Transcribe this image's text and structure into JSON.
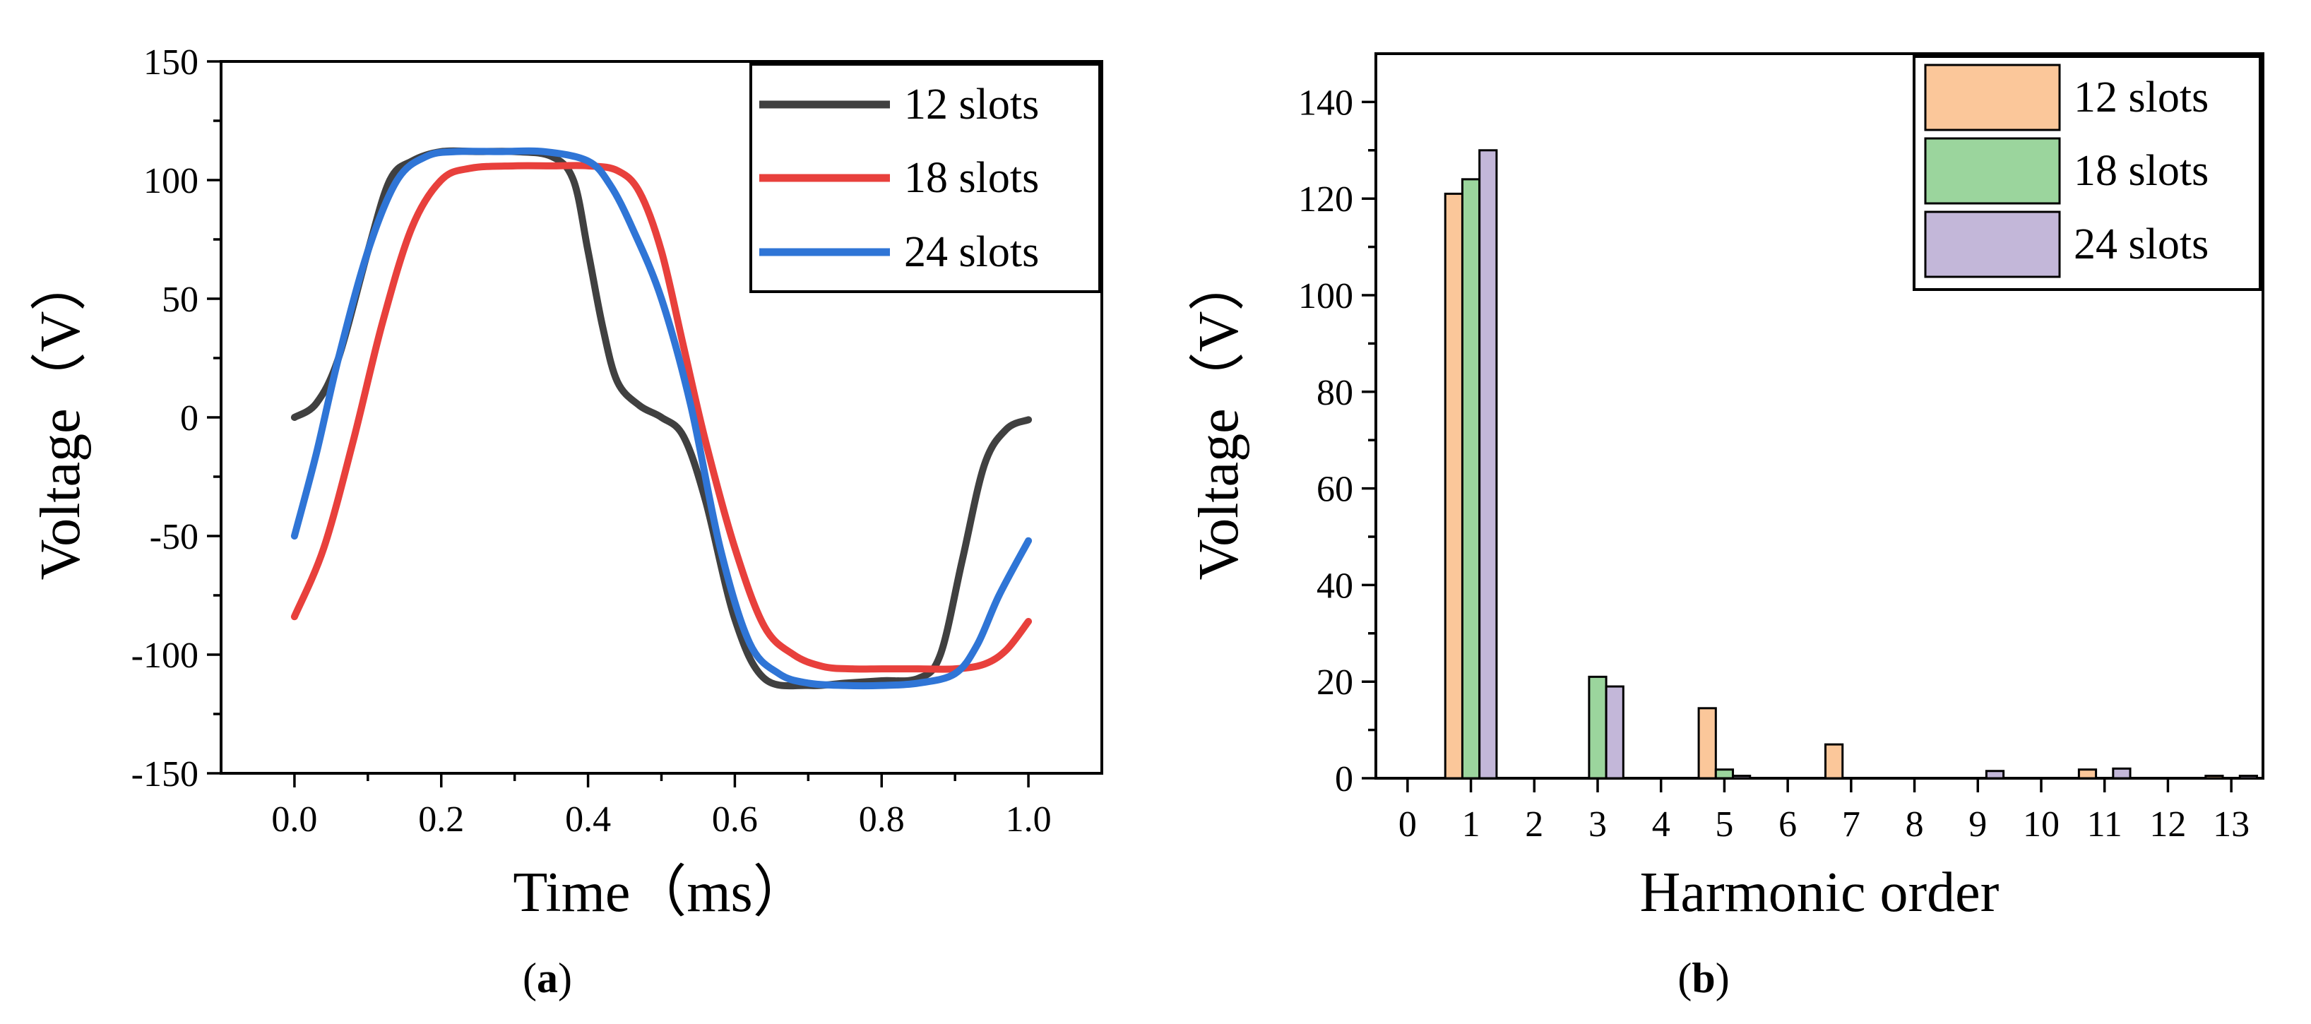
{
  "chart_data": [
    {
      "type": "line",
      "caption": "a",
      "xlabel": "Time（ms）",
      "ylabel": "Voltage（V）",
      "xlim": [
        -0.1,
        1.1
      ],
      "ylim": [
        -150,
        150
      ],
      "xticks": [
        "0.0",
        "0.2",
        "0.4",
        "0.6",
        "0.8",
        "1.0"
      ],
      "yticks": [
        "150",
        "100",
        "50",
        "0",
        "-50",
        "-100",
        "-150"
      ],
      "legend_position": "top-right",
      "series": [
        {
          "name": "12 slots",
          "color": "#404040",
          "x": [
            0.0,
            0.03,
            0.06,
            0.1,
            0.13,
            0.16,
            0.2,
            0.25,
            0.3,
            0.35,
            0.38,
            0.4,
            0.42,
            0.44,
            0.47,
            0.5,
            0.53,
            0.56,
            0.6,
            0.64,
            0.7,
            0.75,
            0.8,
            0.85,
            0.88,
            0.91,
            0.94,
            0.97,
            1.0
          ],
          "values": [
            0,
            6,
            25,
            70,
            100,
            108,
            112,
            112,
            112,
            110,
            100,
            70,
            38,
            15,
            5,
            0,
            -8,
            -35,
            -85,
            -110,
            -113,
            -112,
            -111,
            -110,
            -100,
            -60,
            -20,
            -5,
            -1
          ]
        },
        {
          "name": "18 slots",
          "color": "#e8403c",
          "x": [
            0.0,
            0.04,
            0.08,
            0.12,
            0.16,
            0.2,
            0.24,
            0.3,
            0.35,
            0.4,
            0.44,
            0.47,
            0.5,
            0.53,
            0.56,
            0.6,
            0.64,
            0.68,
            0.72,
            0.76,
            0.8,
            0.85,
            0.9,
            0.94,
            0.97,
            1.0
          ],
          "values": [
            -84,
            -55,
            -10,
            40,
            80,
            100,
            105,
            106,
            106,
            106,
            104,
            95,
            70,
            30,
            -10,
            -55,
            -88,
            -100,
            -105,
            -106,
            -106,
            -106,
            -106,
            -104,
            -98,
            -86
          ]
        },
        {
          "name": "24 slots",
          "color": "#2f75d6",
          "x": [
            0.0,
            0.03,
            0.06,
            0.1,
            0.14,
            0.18,
            0.22,
            0.28,
            0.34,
            0.4,
            0.43,
            0.46,
            0.5,
            0.54,
            0.58,
            0.62,
            0.66,
            0.7,
            0.75,
            0.8,
            0.85,
            0.9,
            0.93,
            0.96,
            1.0
          ],
          "values": [
            -50,
            -15,
            25,
            70,
            100,
            110,
            112,
            112,
            112,
            108,
            98,
            80,
            50,
            5,
            -55,
            -95,
            -108,
            -112,
            -113,
            -113,
            -112,
            -108,
            -96,
            -75,
            -52
          ]
        }
      ]
    },
    {
      "type": "bar",
      "caption": "b",
      "xlabel": "Harmonic order",
      "ylabel": "Voltage（V）",
      "ylim": [
        0,
        150
      ],
      "xlim": [
        -0.5,
        13.5
      ],
      "categories": [
        "0",
        "1",
        "2",
        "3",
        "4",
        "5",
        "6",
        "7",
        "8",
        "9",
        "10",
        "11",
        "12",
        "13"
      ],
      "yticks": [
        "140",
        "120",
        "100",
        "80",
        "60",
        "40",
        "20",
        "0"
      ],
      "legend_position": "top-right",
      "series": [
        {
          "name": "12 slots",
          "color": "#fbc79a",
          "values": [
            0,
            121,
            0,
            0,
            0,
            14.5,
            0,
            7,
            0,
            0,
            0,
            1.8,
            0,
            0.5
          ]
        },
        {
          "name": "18 slots",
          "color": "#9bd59d",
          "values": [
            0,
            124,
            0,
            21,
            0,
            1.8,
            0,
            0,
            0,
            0,
            0,
            0,
            0,
            0
          ]
        },
        {
          "name": "24 slots",
          "color": "#c3b7d9",
          "values": [
            0,
            130,
            0,
            19,
            0,
            0.5,
            0,
            0,
            0,
            1.5,
            0,
            2,
            0,
            0.5
          ]
        }
      ]
    }
  ]
}
